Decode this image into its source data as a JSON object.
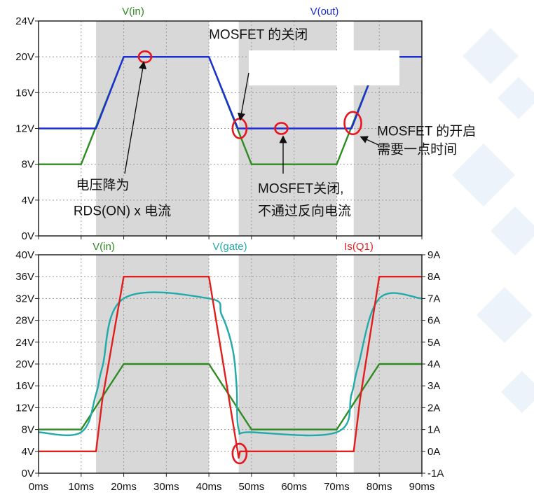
{
  "colors": {
    "v_in": "#2e8b22",
    "v_out": "#1c2fd6",
    "v_gate": "#22aaaa",
    "is_q1": "#e01e1e",
    "shade": "#d8d8d8",
    "marker": "#e8141e",
    "grid": "#9a9a9a"
  },
  "chart_data": [
    {
      "type": "line",
      "x_ticks": [
        "0ms",
        "10ms",
        "20ms",
        "30ms",
        "40ms",
        "50ms",
        "60ms",
        "70ms",
        "80ms",
        "90ms"
      ],
      "y_ticks": [
        "0V",
        "4V",
        "8V",
        "12V",
        "16V",
        "20V",
        "24V"
      ],
      "xlim": [
        0,
        90
      ],
      "ylim": [
        0,
        24
      ],
      "grid": true,
      "shaded_x_ranges": [
        [
          13.5,
          40
        ],
        [
          47,
          70
        ],
        [
          74,
          90
        ]
      ],
      "series": [
        {
          "name": "V(in)",
          "color_key": "v_in",
          "x": [
            0,
            10,
            20,
            40,
            50,
            70,
            80,
            90
          ],
          "y": [
            8,
            8,
            20,
            20,
            8,
            8,
            20,
            20
          ]
        },
        {
          "name": "V(out)",
          "color_key": "v_out",
          "x": [
            0,
            13.5,
            20,
            40,
            46.8,
            73.5,
            80,
            90
          ],
          "y": [
            12,
            12,
            20,
            20,
            12,
            12,
            20,
            20
          ]
        }
      ],
      "annotations": [
        {
          "text": "MOSFET 的关闭",
          "x": 40,
          "y": 22
        },
        {
          "text": "电压降为",
          "x": 8.8,
          "y": 5.2
        },
        {
          "text": "RDS(ON) x 电流",
          "x": 8.2,
          "y": 2.3
        },
        {
          "text": "MOSFET关闭,",
          "x": 51.5,
          "y": 4.8
        },
        {
          "text": "不通过反向电流",
          "x": 51.5,
          "y": 2.3
        },
        {
          "text": "MOSFET 的开启",
          "x": 79.5,
          "y": 11.2
        },
        {
          "text": "需要一点时间",
          "x": 79.5,
          "y": 9.2
        }
      ],
      "markers": [
        {
          "x": 25,
          "y": 20,
          "rx": 9,
          "ry": 8
        },
        {
          "x": 47.2,
          "y": 12,
          "rx": 10,
          "ry": 14
        },
        {
          "x": 57,
          "y": 12,
          "rx": 9,
          "ry": 8
        },
        {
          "x": 73.8,
          "y": 12.6,
          "rx": 12,
          "ry": 16
        }
      ]
    },
    {
      "type": "line",
      "x_ticks": [
        "0ms",
        "10ms",
        "20ms",
        "30ms",
        "40ms",
        "50ms",
        "60ms",
        "70ms",
        "80ms",
        "90ms"
      ],
      "y_ticks_left": [
        "0V",
        "4V",
        "8V",
        "12V",
        "16V",
        "20V",
        "24V",
        "28V",
        "32V",
        "36V",
        "40V"
      ],
      "y_ticks_right": [
        "-1A",
        "0A",
        "1A",
        "2A",
        "3A",
        "4A",
        "5A",
        "6A",
        "7A",
        "8A",
        "9A"
      ],
      "xlim": [
        0,
        90
      ],
      "ylim_left": [
        0,
        40
      ],
      "ylim_right": [
        -1,
        9
      ],
      "grid": true,
      "shaded_x_ranges": [
        [
          13.5,
          40
        ],
        [
          47,
          70
        ],
        [
          74,
          90
        ]
      ],
      "series": [
        {
          "name": "V(in)",
          "color_key": "v_in",
          "axis": "left",
          "x": [
            0,
            10,
            20,
            40,
            50,
            70,
            80,
            90
          ],
          "y": [
            8,
            8,
            20,
            20,
            8,
            8,
            20,
            20
          ]
        },
        {
          "name": "V(gate)",
          "color_key": "v_gate",
          "axis": "left",
          "x": [
            0,
            10,
            13.5,
            15,
            20,
            40,
            43,
            45.5,
            46.5,
            47,
            50,
            70,
            73.5,
            75,
            80,
            90
          ],
          "y": [
            7.5,
            7.5,
            14.5,
            19.5,
            32,
            32,
            29,
            23,
            16,
            8,
            7.5,
            7.5,
            14.5,
            19.5,
            32,
            32
          ],
          "curved": true
        },
        {
          "name": "Is(Q1)",
          "color_key": "is_q1",
          "axis": "right",
          "x": [
            0,
            13.5,
            15,
            20,
            40,
            47,
            47.3,
            70,
            74,
            75.5,
            80,
            90
          ],
          "y": [
            0,
            0,
            2.4,
            8,
            8,
            -0.3,
            0,
            0,
            0,
            2.4,
            8,
            8
          ]
        }
      ],
      "markers": [
        {
          "x": 47.2,
          "y_right": -0.1,
          "rx": 10,
          "ry": 14
        }
      ]
    }
  ]
}
